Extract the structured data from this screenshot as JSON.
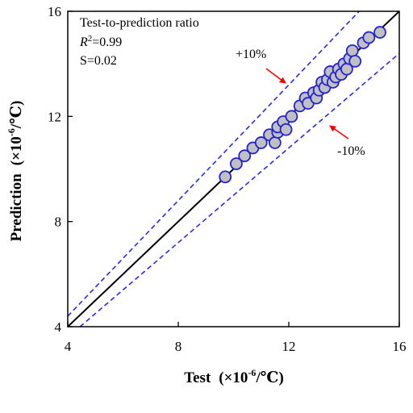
{
  "chart_data": {
    "type": "scatter",
    "xlabel": {
      "main": "Test",
      "unit_prefix": "(×10",
      "unit_exp": "-6",
      "unit_suffix": "/℃)"
    },
    "ylabel": {
      "main": "Prediction",
      "unit_prefix": "(×10",
      "unit_exp": "-6",
      "unit_suffix": "/℃)"
    },
    "xlim": [
      4,
      16
    ],
    "ylim": [
      4,
      16
    ],
    "xticks": [
      "4",
      "8",
      "12",
      "16"
    ],
    "yticks": [
      "4",
      "8",
      "12",
      "16"
    ],
    "grid": false,
    "stats": {
      "title": "Test-to-prediction ratio",
      "r2_symbol": "R",
      "r2_exp": "2",
      "r2_value": "=0.99",
      "s_text": "S=0.02"
    },
    "bands": [
      {
        "label": "+10%",
        "factor": 1.1
      },
      {
        "label": "-10%",
        "factor": 0.9
      }
    ],
    "colors": {
      "diagonal": "#000000",
      "bands": "#2a2ae6",
      "marker_fill": "#c0c0c0",
      "marker_edge": "#2323d6",
      "arrows": "#ff0000"
    },
    "points": [
      {
        "x": 9.7,
        "y": 9.7
      },
      {
        "x": 10.1,
        "y": 10.2
      },
      {
        "x": 10.4,
        "y": 10.5
      },
      {
        "x": 10.7,
        "y": 10.8
      },
      {
        "x": 11.0,
        "y": 11.0
      },
      {
        "x": 11.3,
        "y": 11.3
      },
      {
        "x": 11.5,
        "y": 11.0
      },
      {
        "x": 11.6,
        "y": 11.4
      },
      {
        "x": 11.6,
        "y": 11.6
      },
      {
        "x": 11.8,
        "y": 11.8
      },
      {
        "x": 11.9,
        "y": 11.5
      },
      {
        "x": 12.1,
        "y": 12.0
      },
      {
        "x": 12.4,
        "y": 12.4
      },
      {
        "x": 12.6,
        "y": 12.7
      },
      {
        "x": 12.7,
        "y": 12.5
      },
      {
        "x": 12.9,
        "y": 12.9
      },
      {
        "x": 13.0,
        "y": 12.7
      },
      {
        "x": 13.1,
        "y": 13.0
      },
      {
        "x": 13.2,
        "y": 13.3
      },
      {
        "x": 13.3,
        "y": 13.1
      },
      {
        "x": 13.4,
        "y": 13.4
      },
      {
        "x": 13.5,
        "y": 13.7
      },
      {
        "x": 13.6,
        "y": 13.3
      },
      {
        "x": 13.7,
        "y": 13.5
      },
      {
        "x": 13.8,
        "y": 13.8
      },
      {
        "x": 13.9,
        "y": 13.6
      },
      {
        "x": 14.0,
        "y": 14.0
      },
      {
        "x": 14.1,
        "y": 13.8
      },
      {
        "x": 14.2,
        "y": 14.2
      },
      {
        "x": 14.3,
        "y": 14.5
      },
      {
        "x": 14.4,
        "y": 14.1
      },
      {
        "x": 14.7,
        "y": 14.8
      },
      {
        "x": 14.9,
        "y": 15.0
      },
      {
        "x": 15.3,
        "y": 15.2
      }
    ]
  }
}
